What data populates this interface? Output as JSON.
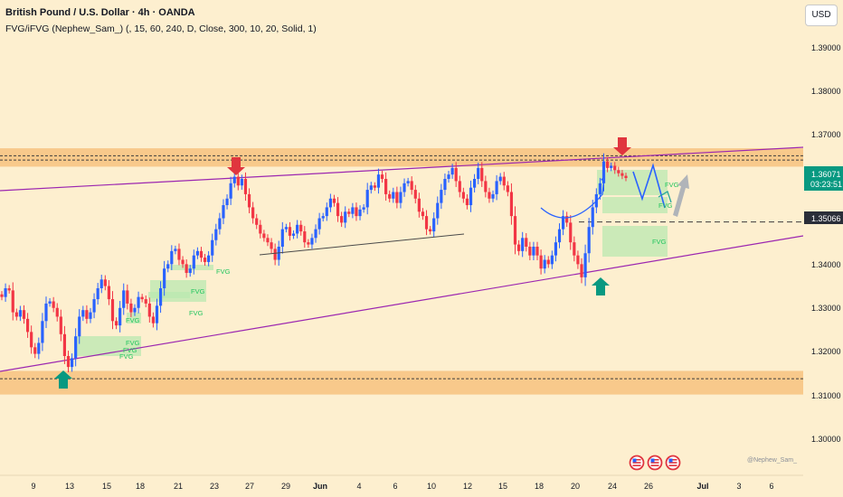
{
  "header": {
    "title": "British Pound / U.S. Dollar · 4h · OANDA",
    "indicator": "FVG/iFVG (Nephew_Sam_) (, 15, 60, 240, D, Close, 300, 10, 20, Solid, 1)"
  },
  "currency_button": "USD",
  "price_scale": {
    "ticks": [
      "1.39000",
      "1.38000",
      "1.37000",
      "1.36071",
      "03:23:51",
      "1.35066",
      "1.34000",
      "1.33000",
      "1.32000",
      "1.31000",
      "1.30000"
    ],
    "last_price": "1.36071",
    "countdown": "03:23:51",
    "marked_level": "1.35066",
    "colors": {
      "last_price_bg": "#089981",
      "marked_level_bg": "#2a2e39"
    }
  },
  "time_axis": {
    "labels": [
      "9",
      "13",
      "15",
      "18",
      "21",
      "23",
      "27",
      "29",
      "Jun",
      "4",
      "6",
      "10",
      "12",
      "15",
      "18",
      "20",
      "24",
      "26",
      "Jul",
      "3",
      "6"
    ]
  },
  "fvg_labels": [
    "FVG",
    "FVG",
    "FVG",
    "FVG",
    "FVG",
    "FVG",
    "FVG",
    "FVG",
    "FVG",
    "FVG"
  ],
  "watermark": "@Nephew_Sam_",
  "event_icons": [
    "us-flag-icon",
    "us-flag-icon",
    "us-flag-icon"
  ],
  "chart_data": {
    "type": "candlestick",
    "symbol": "GBPUSD",
    "timeframe": "4h",
    "ylim": [
      1.296,
      1.402
    ],
    "colors": {
      "up": "#2962ff",
      "down": "#f23645",
      "resistance_zone": "#f7c27f",
      "trendline": "#9c27b0",
      "fvg": "#b9e8b0"
    },
    "zones": [
      {
        "low": 1.3633,
        "high": 1.3675
      },
      {
        "low": 1.3112,
        "high": 1.3166
      }
    ],
    "dashed_levels": [
      1.3658,
      1.3648,
      1.3148,
      1.35066
    ],
    "closes": [
      1.3335,
      1.3355,
      1.335,
      1.33,
      1.329,
      1.3305,
      1.3285,
      1.3255,
      1.322,
      1.3205,
      1.323,
      1.328,
      1.332,
      1.3325,
      1.331,
      1.329,
      1.325,
      1.32,
      1.3175,
      1.3195,
      1.3245,
      1.329,
      1.3305,
      1.3285,
      1.33,
      1.333,
      1.3355,
      1.3375,
      1.336,
      1.333,
      1.328,
      1.327,
      1.331,
      1.335,
      1.332,
      1.33,
      1.331,
      1.3335,
      1.333,
      1.332,
      1.329,
      1.3275,
      1.3315,
      1.3355,
      1.34,
      1.341,
      1.344,
      1.3445,
      1.342,
      1.341,
      1.339,
      1.34,
      1.343,
      1.344,
      1.3425,
      1.3415,
      1.343,
      1.3465,
      1.349,
      1.3515,
      1.3545,
      1.356,
      1.3595,
      1.361,
      1.359,
      1.3605,
      1.357,
      1.354,
      1.3515,
      1.35,
      1.348,
      1.347,
      1.346,
      1.3445,
      1.342,
      1.345,
      1.349,
      1.3495,
      1.3475,
      1.348,
      1.35,
      1.3485,
      1.346,
      1.3455,
      1.347,
      1.349,
      1.3515,
      1.352,
      1.354,
      1.356,
      1.355,
      1.352,
      1.3505,
      1.353,
      1.3525,
      1.354,
      1.352,
      1.3535,
      1.354,
      1.358,
      1.359,
      1.3585,
      1.3615,
      1.3605,
      1.357,
      1.356,
      1.3575,
      1.355,
      1.3575,
      1.3595,
      1.36,
      1.358,
      1.356,
      1.353,
      1.352,
      1.349,
      1.3485,
      1.3515,
      1.355,
      1.358,
      1.3605,
      1.3615,
      1.363,
      1.36,
      1.3575,
      1.356,
      1.3545,
      1.3585,
      1.3605,
      1.363,
      1.36,
      1.3575,
      1.356,
      1.357,
      1.36,
      1.361,
      1.359,
      1.3575,
      1.352,
      1.3455,
      1.344,
      1.347,
      1.345,
      1.343,
      1.345,
      1.343,
      1.34,
      1.342,
      1.341,
      1.343,
      1.346,
      1.349,
      1.352,
      1.3505,
      1.346,
      1.343,
      1.341,
      1.338,
      1.3435,
      1.3495,
      1.354,
      1.357,
      1.3595,
      1.3645,
      1.363,
      1.3635,
      1.3625,
      1.3618,
      1.3612,
      1.3607
    ]
  }
}
